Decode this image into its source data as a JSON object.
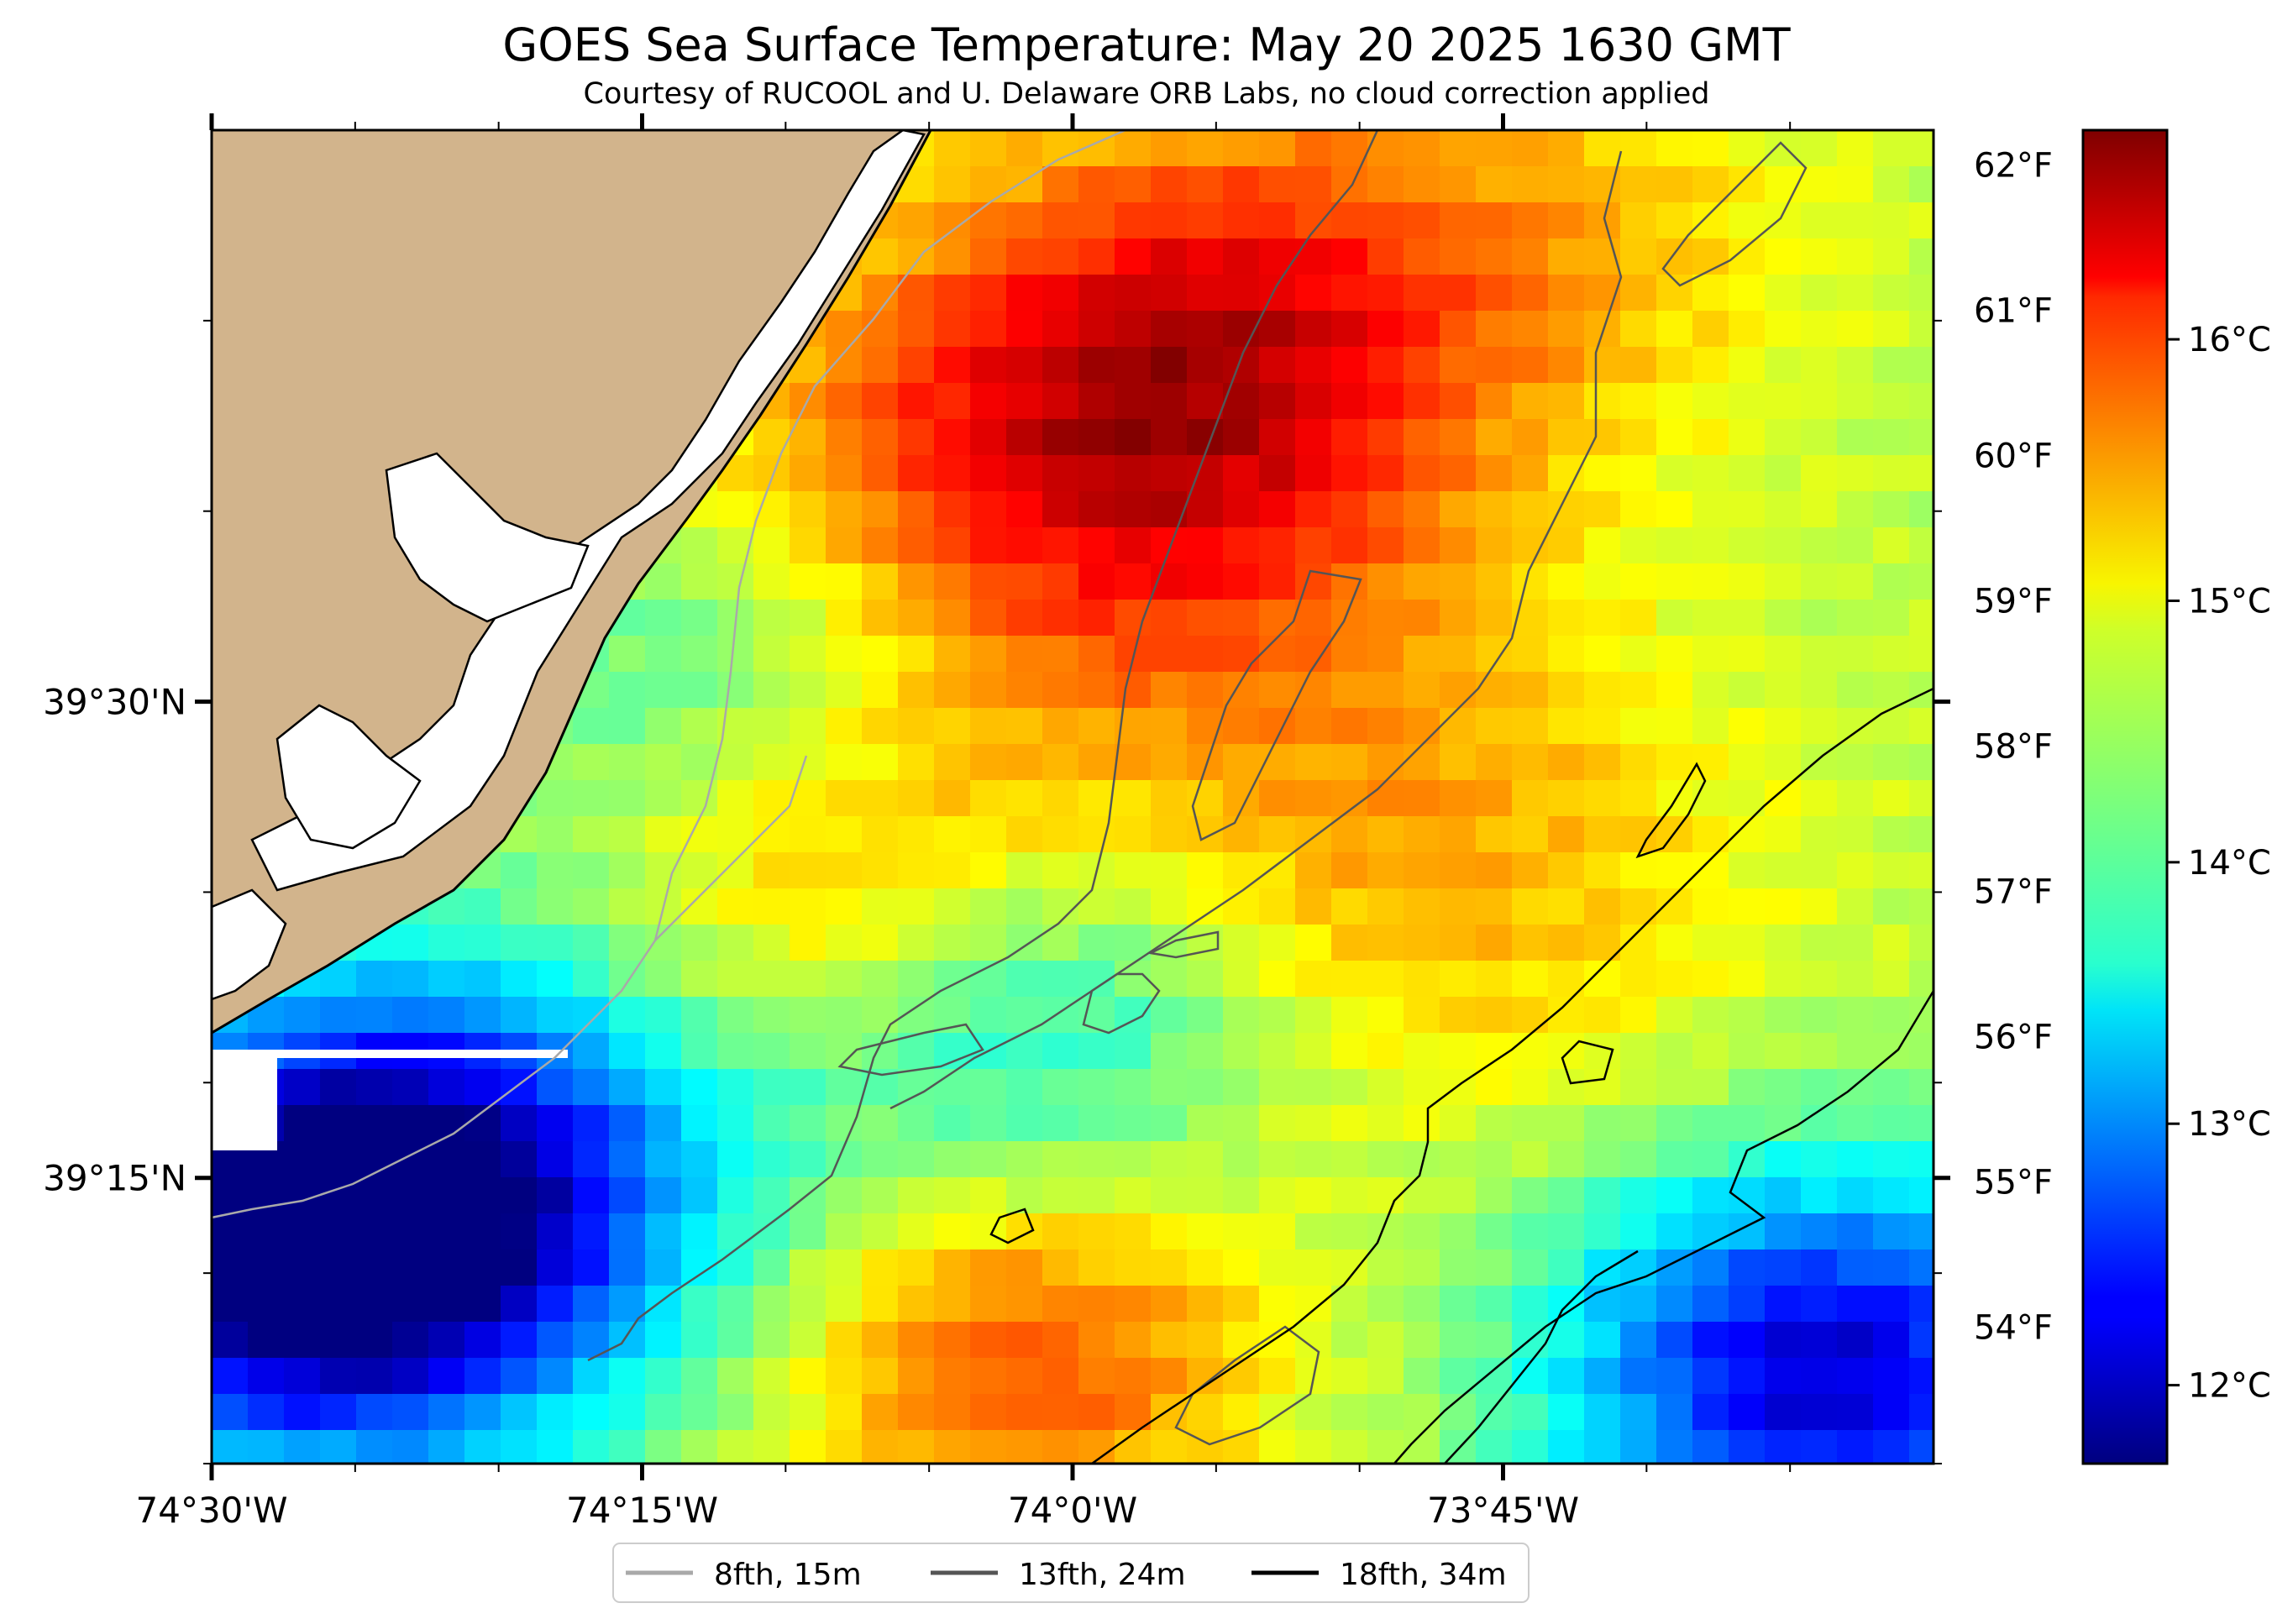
{
  "title": "GOES Sea Surface Temperature: May 20 2025 1630 GMT",
  "subtitle": "Courtesy of RUCOOL and U. Delaware ORB Labs, no cloud correction applied",
  "map": {
    "lon_range": [
      -74.5,
      -73.5
    ],
    "lat_range": [
      39.1,
      39.8
    ],
    "x_ticks": [
      {
        "value": -74.5,
        "label": "74°30'W"
      },
      {
        "value": -74.25,
        "label": "74°15'W"
      },
      {
        "value": -74.0,
        "label": "74°0'W"
      },
      {
        "value": -73.75,
        "label": "73°45'W"
      }
    ],
    "y_ticks": [
      {
        "value": 39.5,
        "label": "39°30'N"
      },
      {
        "value": 39.25,
        "label": "39°15'N"
      }
    ],
    "land_color": "#d2b48c",
    "no_data_color": "#ffffff"
  },
  "fahrenheit_scale": {
    "labels": [
      "62°F",
      "61°F",
      "60°F",
      "59°F",
      "58°F",
      "57°F",
      "56°F",
      "55°F",
      "54°F"
    ]
  },
  "colorbar": {
    "colormap": "jet",
    "range_c": [
      11.7,
      16.8
    ],
    "ticks": [
      {
        "value": 12,
        "label": "12°C"
      },
      {
        "value": 13,
        "label": "13°C"
      },
      {
        "value": 14,
        "label": "14°C"
      },
      {
        "value": 15,
        "label": "15°C"
      },
      {
        "value": 16,
        "label": "16°C"
      }
    ]
  },
  "legend": {
    "items": [
      {
        "label": "8fth, 15m",
        "color": "#a9a9a9"
      },
      {
        "label": "13fth, 24m",
        "color": "#555555"
      },
      {
        "label": "18fth, 34m",
        "color": "#000000"
      }
    ]
  }
}
